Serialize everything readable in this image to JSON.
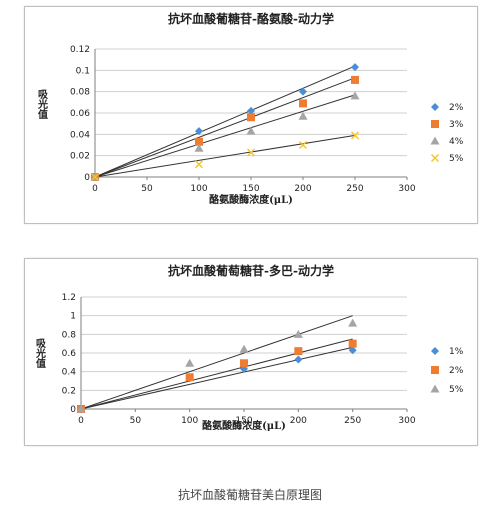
{
  "caption": "抗坏血酸葡糖苷美白原理图",
  "chart_data": [
    {
      "type": "scatter",
      "title": "抗坏血酸葡糖苷-酪氨酸-动力学",
      "xlabel": "酪氨酸酶浓度(μL)",
      "ylabel": "吸光值",
      "xlim": [
        0,
        300
      ],
      "ylim": [
        0,
        0.12
      ],
      "xticks": [
        "0",
        "50",
        "100",
        "150",
        "200",
        "250",
        "300"
      ],
      "yticks": [
        "0",
        "0.02",
        "0.04",
        "0.06",
        "0.08",
        "0.1",
        "0.12"
      ],
      "grid": true,
      "legend_position": "right",
      "series": [
        {
          "name": "2%",
          "marker": "diamond",
          "color": "#4a8fd6",
          "x": [
            0,
            100,
            150,
            200,
            250
          ],
          "y": [
            0,
            0.043,
            0.062,
            0.08,
            0.103
          ],
          "trend_end": 0.104
        },
        {
          "name": "3%",
          "marker": "square",
          "color": "#ee7d31",
          "x": [
            0,
            100,
            150,
            200,
            250
          ],
          "y": [
            0,
            0.033,
            0.056,
            0.069,
            0.091
          ],
          "trend_end": 0.093
        },
        {
          "name": "4%",
          "marker": "triangle",
          "color": "#a5a5a5",
          "x": [
            0,
            100,
            150,
            200,
            250
          ],
          "y": [
            0,
            0.027,
            0.043,
            0.057,
            0.076
          ],
          "trend_end": 0.077
        },
        {
          "name": "5%",
          "marker": "cross",
          "color": "#f5c322",
          "x": [
            0,
            100,
            150,
            200,
            250
          ],
          "y": [
            0,
            0.012,
            0.023,
            0.03,
            0.039
          ],
          "trend_end": 0.039
        }
      ]
    },
    {
      "type": "scatter",
      "title": "抗坏血酸葡萄糖苷-多巴-动力学",
      "xlabel": "酪氨酸酶浓度(μL)",
      "ylabel": "吸光值",
      "xlim": [
        0,
        300
      ],
      "ylim": [
        0,
        1.2
      ],
      "xticks": [
        "0",
        "50",
        "100",
        "150",
        "200",
        "250",
        "300"
      ],
      "yticks": [
        "0",
        "0.2",
        "0.4",
        "0.6",
        "0.8",
        "1",
        "1.2"
      ],
      "grid": true,
      "legend_position": "right",
      "series": [
        {
          "name": "1%",
          "marker": "diamond",
          "color": "#4a8fd6",
          "x": [
            0,
            100,
            150,
            200,
            250
          ],
          "y": [
            0,
            0.33,
            0.43,
            0.53,
            0.63
          ],
          "trend_end": 0.66
        },
        {
          "name": "2%",
          "marker": "square",
          "color": "#ee7d31",
          "x": [
            0,
            100,
            150,
            200,
            250
          ],
          "y": [
            0,
            0.34,
            0.49,
            0.62,
            0.7
          ],
          "trend_end": 0.75
        },
        {
          "name": "5%",
          "marker": "triangle",
          "color": "#a5a5a5",
          "x": [
            0,
            100,
            150,
            200,
            250
          ],
          "y": [
            0,
            0.49,
            0.64,
            0.8,
            0.92
          ],
          "trend_end": 1.0
        }
      ]
    }
  ]
}
